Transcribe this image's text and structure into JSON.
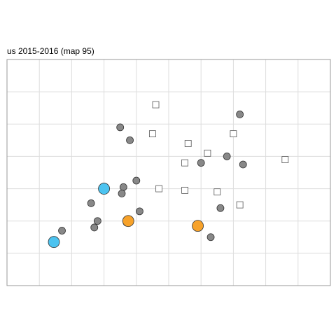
{
  "chart_data": {
    "type": "scatter",
    "title": "us 2015-2016  (map 95)",
    "xlabel": "",
    "ylabel": "",
    "xlim": [
      0,
      10
    ],
    "ylim": [
      0,
      7
    ],
    "grid": true,
    "colors": {
      "grey_point": "#888888",
      "blue_point": "#4cc3f0",
      "orange_point": "#f7a22a",
      "square_fill": "#ffffff",
      "outline": "#333333",
      "grid": "#dddddd",
      "frame": "#999999"
    },
    "series": [
      {
        "marker": "square",
        "points": [
          [
            4.6,
            5.6
          ],
          [
            4.5,
            4.7
          ],
          [
            5.6,
            4.4
          ],
          [
            6.2,
            4.1
          ],
          [
            7.0,
            4.7
          ],
          [
            5.5,
            3.8
          ],
          [
            8.6,
            3.9
          ],
          [
            4.7,
            3.0
          ],
          [
            5.5,
            2.95
          ],
          [
            6.5,
            2.9
          ],
          [
            7.2,
            2.5
          ]
        ]
      },
      {
        "marker": "circle",
        "color": "grey",
        "points": [
          [
            7.2,
            5.3
          ],
          [
            3.5,
            4.9
          ],
          [
            3.8,
            4.5
          ],
          [
            6.8,
            4.0
          ],
          [
            6.0,
            3.8
          ],
          [
            7.3,
            3.75
          ],
          [
            4.0,
            3.25
          ],
          [
            3.6,
            3.05
          ],
          [
            3.55,
            2.85
          ],
          [
            2.6,
            2.55
          ],
          [
            4.1,
            2.3
          ],
          [
            6.6,
            2.4
          ],
          [
            2.8,
            2.0
          ],
          [
            2.7,
            1.8
          ],
          [
            1.7,
            1.7
          ],
          [
            6.3,
            1.5
          ],
          [
            3.7,
            1.95
          ]
        ]
      },
      {
        "marker": "circle",
        "color": "blue",
        "points": [
          [
            3.0,
            3.0
          ],
          [
            1.45,
            1.35
          ]
        ]
      },
      {
        "marker": "circle",
        "color": "orange",
        "points": [
          [
            3.75,
            2.0
          ],
          [
            5.9,
            1.85
          ]
        ]
      }
    ]
  }
}
